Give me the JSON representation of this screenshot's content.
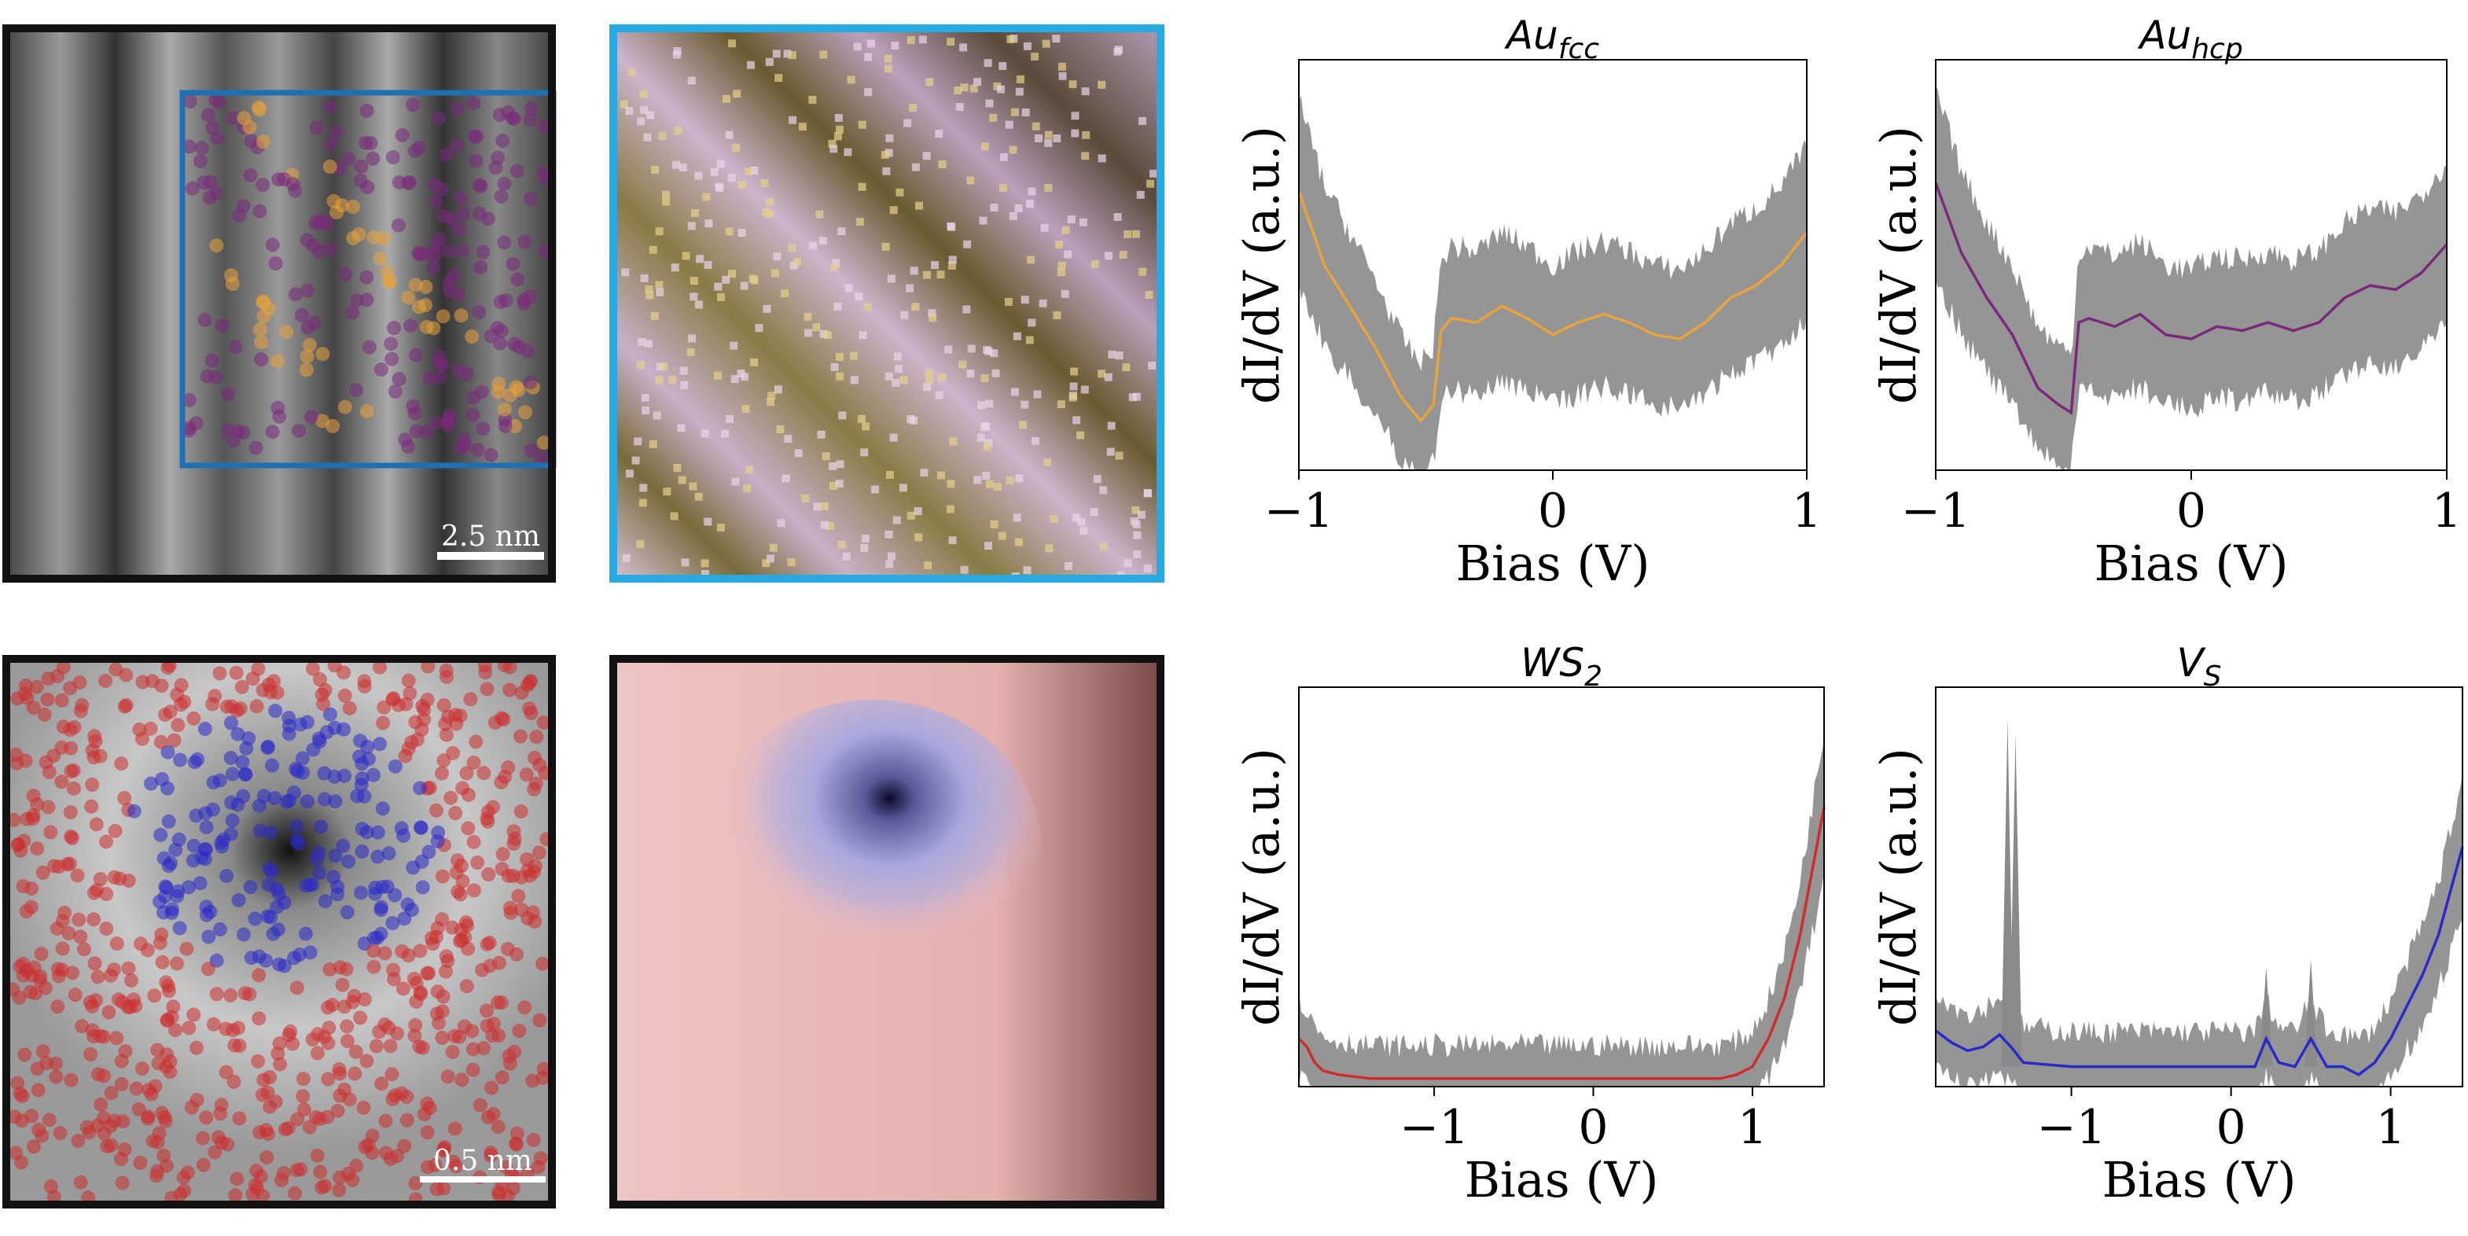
{
  "colors": {
    "fcc": "#e8a33d",
    "hcp": "#7a2a7a",
    "ws2": "#cc2e2e",
    "vs": "#2a2ac8",
    "noise": "#8a8a8a",
    "frame_dark": "#111111",
    "frame_blue": "#1f6fb4",
    "frame_cyan": "#27a9e1"
  },
  "images": {
    "top_left_scale": "2.5 nm",
    "bottom_left_scale": "0.5 nm"
  },
  "chart_data": [
    {
      "type": "line",
      "title": "Au",
      "title_sub": "fcc",
      "xlabel": "Bias (V)",
      "ylabel": "dI/dV (a.u.)",
      "xlim": [
        -1,
        1
      ],
      "ylim": [
        0,
        1
      ],
      "xticks": [
        -1,
        0,
        1
      ],
      "xtick_labels": [
        "−1",
        "0",
        "1"
      ],
      "series": [
        {
          "color": "#e8a33d",
          "x": [
            -1.0,
            -0.9,
            -0.8,
            -0.7,
            -0.6,
            -0.52,
            -0.47,
            -0.44,
            -0.4,
            -0.3,
            -0.2,
            -0.1,
            0.0,
            0.1,
            0.2,
            0.3,
            0.4,
            0.5,
            0.6,
            0.7,
            0.8,
            0.9,
            1.0
          ],
          "values": [
            0.68,
            0.5,
            0.4,
            0.3,
            0.18,
            0.12,
            0.16,
            0.34,
            0.37,
            0.36,
            0.4,
            0.37,
            0.33,
            0.36,
            0.38,
            0.36,
            0.33,
            0.32,
            0.36,
            0.42,
            0.45,
            0.5,
            0.58
          ]
        }
      ]
    },
    {
      "type": "line",
      "title": "Au",
      "title_sub": "hcp",
      "xlabel": "Bias (V)",
      "ylabel": "dI/dV (a.u.)",
      "xlim": [
        -1,
        1
      ],
      "ylim": [
        0,
        1
      ],
      "xticks": [
        -1,
        0,
        1
      ],
      "xtick_labels": [
        "−1",
        "0",
        "1"
      ],
      "series": [
        {
          "color": "#7a2a7a",
          "x": [
            -1.0,
            -0.9,
            -0.8,
            -0.7,
            -0.6,
            -0.52,
            -0.47,
            -0.44,
            -0.4,
            -0.3,
            -0.2,
            -0.1,
            0.0,
            0.1,
            0.2,
            0.3,
            0.4,
            0.5,
            0.6,
            0.7,
            0.8,
            0.9,
            1.0
          ],
          "values": [
            0.7,
            0.53,
            0.42,
            0.33,
            0.2,
            0.16,
            0.14,
            0.36,
            0.37,
            0.35,
            0.38,
            0.33,
            0.32,
            0.35,
            0.34,
            0.36,
            0.34,
            0.36,
            0.42,
            0.45,
            0.44,
            0.48,
            0.55
          ]
        }
      ]
    },
    {
      "type": "line",
      "title": "WS",
      "title_sub": "2",
      "xlabel": "Bias (V)",
      "ylabel": "dI/dV (a.u.)",
      "xlim": [
        -1.85,
        1.45
      ],
      "ylim": [
        0,
        1
      ],
      "xticks": [
        -1,
        0,
        1
      ],
      "xtick_labels": [
        "−1",
        "0",
        "1"
      ],
      "series": [
        {
          "color": "#cc2e2e",
          "x": [
            -1.85,
            -1.8,
            -1.75,
            -1.7,
            -1.6,
            -1.4,
            -1.2,
            -1.0,
            -0.5,
            0.0,
            0.5,
            0.8,
            0.9,
            1.0,
            1.1,
            1.2,
            1.3,
            1.45
          ],
          "values": [
            0.12,
            0.1,
            0.06,
            0.04,
            0.03,
            0.02,
            0.02,
            0.02,
            0.02,
            0.02,
            0.02,
            0.02,
            0.03,
            0.05,
            0.12,
            0.22,
            0.38,
            0.7
          ]
        }
      ]
    },
    {
      "type": "line",
      "title": "V",
      "title_sub": "S",
      "xlabel": "Bias (V)",
      "ylabel": "dI/dV (a.u.)",
      "xlim": [
        -1.85,
        1.45
      ],
      "ylim": [
        0,
        1
      ],
      "xticks": [
        -1,
        0,
        1
      ],
      "xtick_labels": [
        "−1",
        "0",
        "1"
      ],
      "series": [
        {
          "color": "#2a2ac8",
          "x": [
            -1.85,
            -1.75,
            -1.65,
            -1.55,
            -1.45,
            -1.38,
            -1.3,
            -1.0,
            -0.5,
            0.0,
            0.15,
            0.22,
            0.3,
            0.4,
            0.5,
            0.6,
            0.7,
            0.8,
            0.9,
            1.0,
            1.1,
            1.2,
            1.3,
            1.45
          ],
          "values": [
            0.14,
            0.11,
            0.09,
            0.1,
            0.13,
            0.1,
            0.06,
            0.05,
            0.05,
            0.05,
            0.05,
            0.12,
            0.06,
            0.05,
            0.12,
            0.05,
            0.05,
            0.03,
            0.06,
            0.12,
            0.2,
            0.28,
            0.38,
            0.6
          ]
        }
      ]
    }
  ]
}
